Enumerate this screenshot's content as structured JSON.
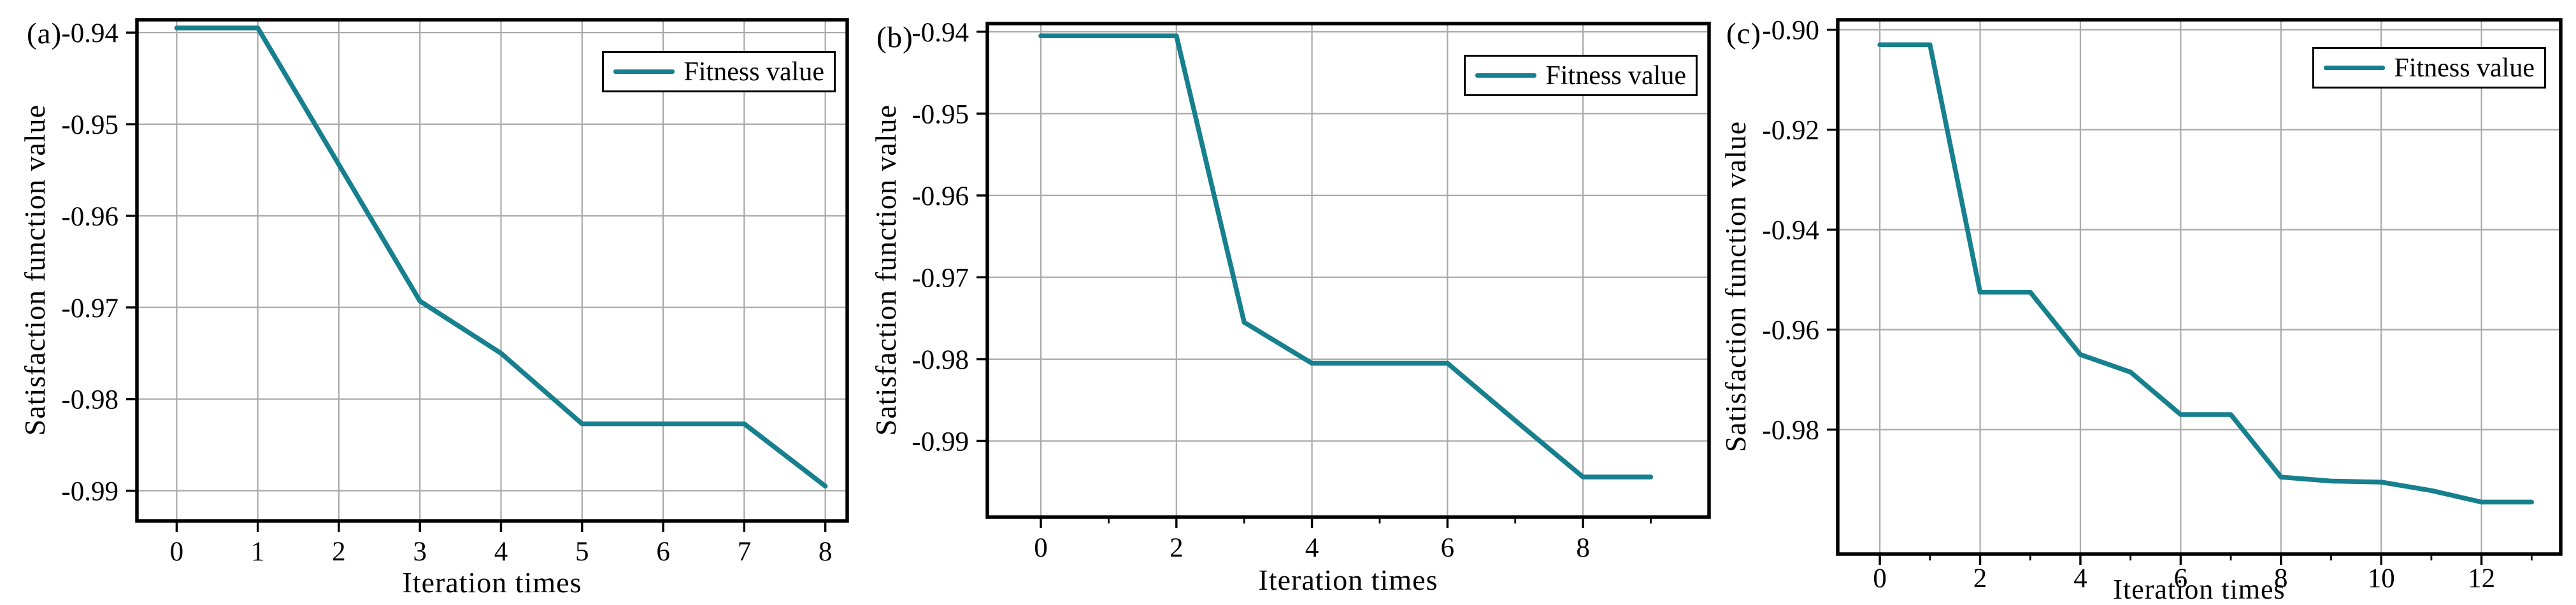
{
  "figure": {
    "background": "#ffffff",
    "accent": "#17808e",
    "grid_color": "#a9a9a9",
    "axis_color": "#000000",
    "grid": true,
    "legend_position": "upper right"
  },
  "chart_data": [
    {
      "type": "line",
      "panel_label": "(a)",
      "xlabel": "Iteration times",
      "ylabel": "Satisfaction function value",
      "legend": "Fitness value",
      "legend_position": "upper right",
      "grid": true,
      "x": [
        0,
        1,
        2,
        3,
        4,
        5,
        6,
        7,
        8
      ],
      "y": [
        -0.9395,
        -0.9395,
        -0.9544,
        -0.9693,
        -0.975,
        -0.9827,
        -0.9827,
        -0.9827,
        -0.9895
      ],
      "xticks": [
        0,
        1,
        2,
        3,
        4,
        5,
        6,
        7,
        8
      ],
      "xtick_labels": [
        "0",
        "1",
        "2",
        "3",
        "4",
        "5",
        "6",
        "7",
        "8"
      ],
      "minor_xticks": [],
      "yticks": [
        -0.94,
        -0.95,
        -0.96,
        -0.97,
        -0.98,
        -0.99
      ],
      "ytick_labels": [
        "-0.94",
        "-0.95",
        "-0.96",
        "-0.97",
        "-0.98",
        "-0.99"
      ],
      "xlim": [
        -0.49,
        8.27
      ],
      "ylim": [
        -0.9933,
        -0.9386
      ]
    },
    {
      "type": "line",
      "panel_label": "(b)",
      "xlabel": "Iteration times",
      "ylabel": "Satisfaction function value",
      "legend": "Fitness value",
      "legend_position": "upper right",
      "grid": true,
      "x": [
        0,
        1,
        2,
        3,
        4,
        5,
        6,
        7,
        8,
        9
      ],
      "y": [
        -0.9405,
        -0.9405,
        -0.9405,
        -0.9755,
        -0.9805,
        -0.9805,
        -0.9805,
        -0.9875,
        -0.9944,
        -0.9944
      ],
      "xticks": [
        0,
        2,
        4,
        6,
        8
      ],
      "xtick_labels": [
        "0",
        "2",
        "4",
        "6",
        "8"
      ],
      "minor_xticks": [
        1,
        3,
        5,
        7,
        9
      ],
      "yticks": [
        -0.94,
        -0.95,
        -0.96,
        -0.97,
        -0.98,
        -0.99
      ],
      "ytick_labels": [
        "-0.94",
        "-0.95",
        "-0.96",
        "-0.97",
        "-0.98",
        "-0.99"
      ],
      "xlim": [
        -0.79,
        9.86
      ],
      "ylim": [
        -0.9993,
        -0.939
      ]
    },
    {
      "type": "line",
      "panel_label": "(c)",
      "xlabel": "Iteration times",
      "ylabel": "Satisfaction function value",
      "legend": "Fitness value",
      "legend_position": "upper right",
      "grid": true,
      "x": [
        0,
        1,
        2,
        3,
        4,
        5,
        6,
        7,
        8,
        9,
        10,
        11,
        12,
        13
      ],
      "y": [
        -0.903,
        -0.903,
        -0.9525,
        -0.9525,
        -0.965,
        -0.9685,
        -0.977,
        -0.977,
        -0.9895,
        -0.9903,
        -0.9905,
        -0.9922,
        -0.9945,
        -0.9945
      ],
      "xticks": [
        0,
        2,
        4,
        6,
        8,
        10,
        12
      ],
      "xtick_labels": [
        "0",
        "2",
        "4",
        "6",
        "8",
        "10",
        "12"
      ],
      "minor_xticks": [
        1,
        3,
        5,
        7,
        9,
        11,
        13
      ],
      "yticks": [
        -0.9,
        -0.92,
        -0.94,
        -0.96,
        -0.98
      ],
      "ytick_labels": [
        "-0.90",
        "-0.92",
        "-0.94",
        "-0.96",
        "-0.98"
      ],
      "xlim": [
        -0.84,
        13.58
      ],
      "ylim": [
        -1.0049,
        -0.898
      ]
    }
  ]
}
